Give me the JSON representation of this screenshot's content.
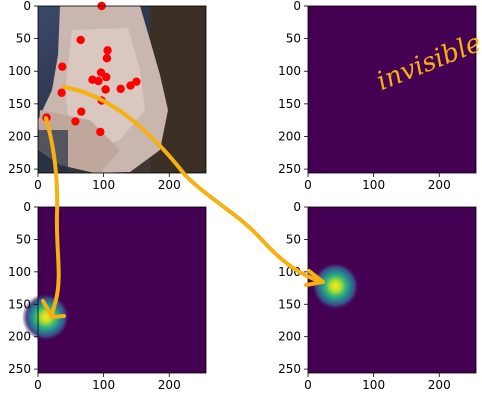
{
  "colors": {
    "viridis_bg": "#440154",
    "keypoint": "#ff0000",
    "annotation_stroke": "#f7b012",
    "photo_skin": "#c9b6ae",
    "photo_dark": "#2f3a55"
  },
  "chart_data": [
    {
      "type": "image-with-scatter",
      "panel": "top-left",
      "content": "photo of a hand with red keypoints",
      "xlim": [
        0,
        256
      ],
      "ylim": [
        256,
        0
      ],
      "xticks": [
        "0",
        "100",
        "200"
      ],
      "yticks": [
        "0",
        "50",
        "100",
        "150",
        "200",
        "250"
      ],
      "points": [
        {
          "x": 97,
          "y": 0
        },
        {
          "x": 65,
          "y": 52
        },
        {
          "x": 106,
          "y": 68
        },
        {
          "x": 105,
          "y": 80
        },
        {
          "x": 37,
          "y": 93
        },
        {
          "x": 96,
          "y": 102
        },
        {
          "x": 104,
          "y": 109
        },
        {
          "x": 83,
          "y": 113
        },
        {
          "x": 92,
          "y": 115
        },
        {
          "x": 150,
          "y": 116
        },
        {
          "x": 141,
          "y": 122
        },
        {
          "x": 126,
          "y": 127
        },
        {
          "x": 103,
          "y": 128
        },
        {
          "x": 36,
          "y": 133
        },
        {
          "x": 97,
          "y": 145
        },
        {
          "x": 66,
          "y": 162
        },
        {
          "x": 57,
          "y": 177
        },
        {
          "x": 13,
          "y": 171
        },
        {
          "x": 95,
          "y": 193
        }
      ]
    },
    {
      "type": "heatmap",
      "panel": "top-right",
      "xlim": [
        0,
        256
      ],
      "ylim": [
        256,
        0
      ],
      "xticks": [
        "0",
        "100",
        "200"
      ],
      "yticks": [
        "0",
        "50",
        "100",
        "150",
        "200",
        "250"
      ],
      "peak": null,
      "annotation": "invisible"
    },
    {
      "type": "heatmap",
      "panel": "bottom-left",
      "xlim": [
        0,
        256
      ],
      "ylim": [
        256,
        0
      ],
      "xticks": [
        "0",
        "100",
        "200"
      ],
      "yticks": [
        "0",
        "50",
        "100",
        "150",
        "200",
        "250"
      ],
      "peak": {
        "x": 12,
        "y": 170,
        "sigma": 14
      }
    },
    {
      "type": "heatmap",
      "panel": "bottom-right",
      "xlim": [
        0,
        256
      ],
      "ylim": [
        256,
        0
      ],
      "xticks": [
        "0",
        "100",
        "200"
      ],
      "yticks": [
        "0",
        "50",
        "100",
        "150",
        "200",
        "250"
      ],
      "peak": {
        "x": 42,
        "y": 122,
        "sigma": 14
      }
    }
  ]
}
